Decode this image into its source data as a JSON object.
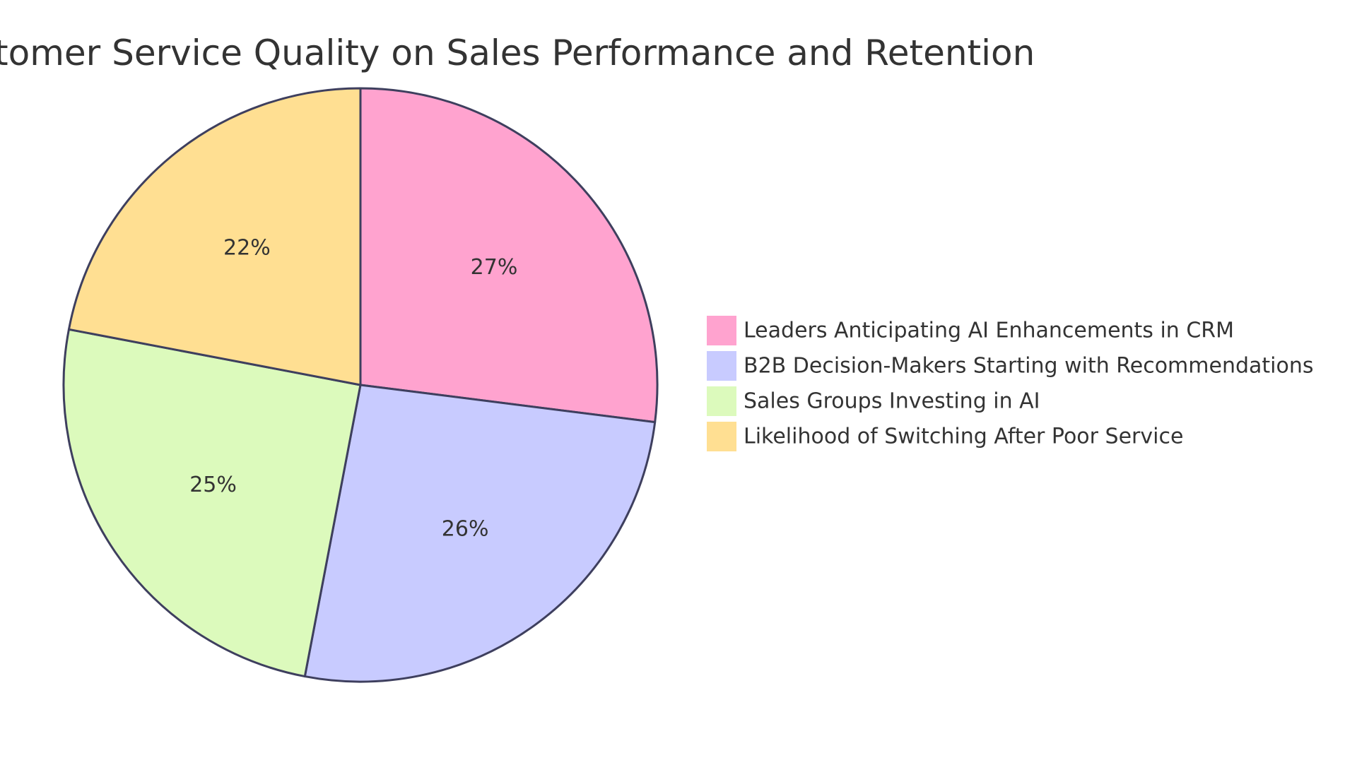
{
  "chart_data": {
    "type": "pie",
    "title": "tomer Service Quality on Sales Performance and Retention",
    "slices": [
      {
        "label": "Leaders Anticipating AI Enhancements in CRM",
        "value": 27,
        "display": "27%",
        "color": "#FFA3CF"
      },
      {
        "label": "B2B Decision-Makers Starting with Recommendations",
        "value": 26,
        "display": "26%",
        "color": "#C8CBFF"
      },
      {
        "label": "Sales Groups Investing in AI",
        "value": 25,
        "display": "25%",
        "color": "#DCFABC"
      },
      {
        "label": "Likelihood of Switching After Poor Service",
        "value": 22,
        "display": "22%",
        "color": "#FFDF92"
      }
    ],
    "legend_position": "right",
    "stroke_color": "#3E3F5E"
  }
}
